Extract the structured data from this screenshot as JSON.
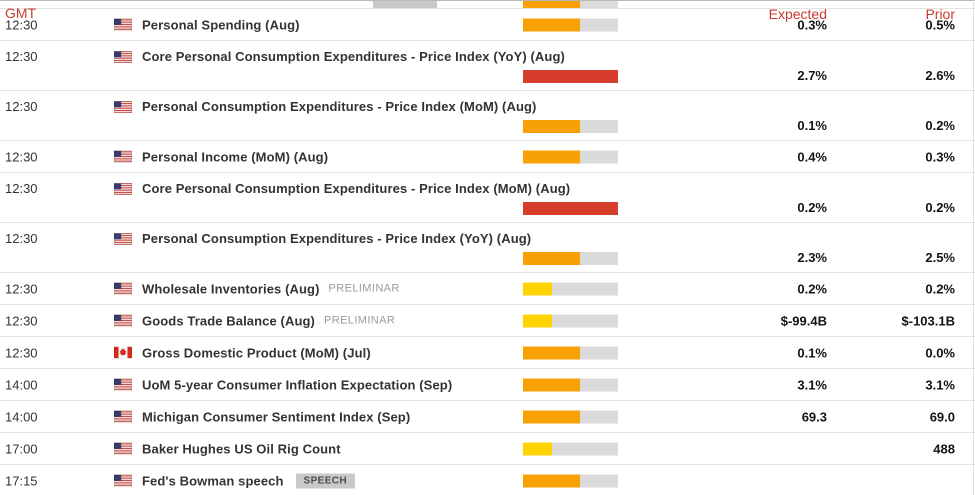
{
  "header": {
    "gmt": "GMT",
    "expected": "Expected",
    "prior": "Prior"
  },
  "volatility_colors": {
    "high": "#d63d2b",
    "medium": "#f7a104",
    "low": "#ffd302",
    "track": "#dbdbdb"
  },
  "volatility_fill_pct": {
    "high": 100,
    "medium": 60,
    "low": 30
  },
  "clipped_top_row": {
    "volatility": "medium",
    "badge_visible": true
  },
  "rows": [
    {
      "time": "12:30",
      "country": "US",
      "name": "Personal Spending (Aug)",
      "volatility": "medium",
      "expected": "0.3%",
      "prior": "0.5%",
      "two_line": false
    },
    {
      "time": "12:30",
      "country": "US",
      "name": "Core Personal Consumption Expenditures - Price Index (YoY) (Aug)",
      "volatility": "high",
      "expected": "2.7%",
      "prior": "2.6%",
      "two_line": true
    },
    {
      "time": "12:30",
      "country": "US",
      "name": "Personal Consumption Expenditures - Price Index (MoM) (Aug)",
      "volatility": "medium",
      "expected": "0.1%",
      "prior": "0.2%",
      "two_line": true
    },
    {
      "time": "12:30",
      "country": "US",
      "name": "Personal Income (MoM) (Aug)",
      "volatility": "medium",
      "expected": "0.4%",
      "prior": "0.3%",
      "two_line": false
    },
    {
      "time": "12:30",
      "country": "US",
      "name": "Core Personal Consumption Expenditures - Price Index (MoM) (Aug)",
      "volatility": "high",
      "expected": "0.2%",
      "prior": "0.2%",
      "two_line": true
    },
    {
      "time": "12:30",
      "country": "US",
      "name": "Personal Consumption Expenditures - Price Index (YoY) (Aug)",
      "volatility": "medium",
      "expected": "2.3%",
      "prior": "2.5%",
      "two_line": true
    },
    {
      "time": "12:30",
      "country": "US",
      "name": "Wholesale Inventories (Aug)",
      "tag": "PRELIMINAR",
      "volatility": "low",
      "expected": "0.2%",
      "prior": "0.2%",
      "two_line": false
    },
    {
      "time": "12:30",
      "country": "US",
      "name": "Goods Trade Balance (Aug)",
      "tag": "PRELIMINAR",
      "volatility": "low",
      "expected": "$-99.4B",
      "prior": "$-103.1B",
      "two_line": false
    },
    {
      "time": "12:30",
      "country": "CA",
      "name": "Gross Domestic Product (MoM) (Jul)",
      "volatility": "medium",
      "expected": "0.1%",
      "prior": "0.0%",
      "two_line": false
    },
    {
      "time": "14:00",
      "country": "US",
      "name": "UoM 5-year Consumer Inflation Expectation (Sep)",
      "volatility": "medium",
      "expected": "3.1%",
      "prior": "3.1%",
      "two_line": false
    },
    {
      "time": "14:00",
      "country": "US",
      "name": "Michigan Consumer Sentiment Index (Sep)",
      "volatility": "medium",
      "expected": "69.3",
      "prior": "69.0",
      "two_line": false
    },
    {
      "time": "17:00",
      "country": "US",
      "name": "Baker Hughes US Oil Rig Count",
      "volatility": "low",
      "expected": "",
      "prior": "488",
      "two_line": false
    },
    {
      "time": "17:15",
      "country": "US",
      "name": "Fed's Bowman speech",
      "badge": "SPEECH",
      "volatility": "medium",
      "expected": "",
      "prior": "",
      "two_line": false
    }
  ]
}
